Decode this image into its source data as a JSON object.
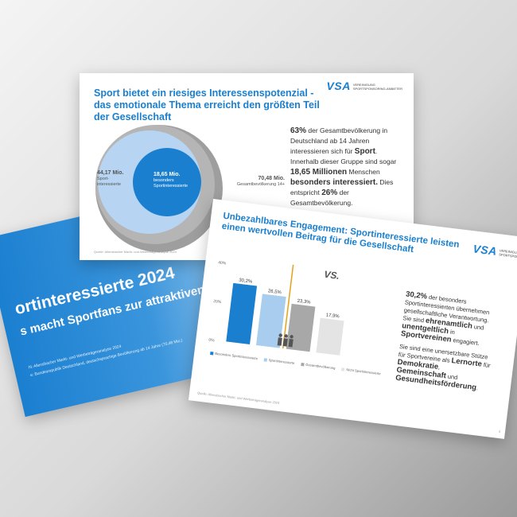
{
  "slide_title": {
    "title": "ortinteressierte 2024",
    "subtitle": "s macht Sportfans zur attraktiven Zielgruppe",
    "footnote1": "hl: Allensbacher Markt- und Werbeträgeranalyse 2024",
    "footnote2": "e: Bundesrepublik Deutschland, deutschsprachige Bevölkerung ab 14 Jahre (70,48 Mio.)"
  },
  "slide_potential": {
    "headline": "Sport bietet ein riesiges Interessenspotenzial - das emotionale Thema erreicht den größten Teil der Gesellschaft",
    "logo": {
      "mark": "VSA",
      "line1": "VEREINIGUNG",
      "line2": "SPORTSPONSORING-ANBIETER"
    },
    "outer": {
      "value": "70,48 Mio.",
      "label": "Gesamtbevölkerung 14+"
    },
    "middle": {
      "value": "44,17 Mio.",
      "label1": "Sport-",
      "label2": "interessierte"
    },
    "inner": {
      "value": "18,65 Mio.",
      "label1": "besonders",
      "label2": "Sportinteressierte"
    },
    "text": {
      "p1_bold": "63%",
      "p1": " der Gesamtbevölkerung in Deutschland ab 14 Jahren interessieren sich für ",
      "p1_bold2": "Sport",
      "p2": ". Innerhalb dieser Gruppe sind sogar ",
      "p2_bold": "18,65 Millionen",
      "p3": " Menschen ",
      "p3_bold": "besonders interessiert.",
      "p4": " Dies entspricht ",
      "p4_bold": "26%",
      "p5": " der Gesamtbevölkerung."
    },
    "source": "Quelle: Allensbacher Markt- und Werbeträgeranalyse 2024"
  },
  "slide_engagement": {
    "headline": "Unbezahlbares Engagement: Sportinteressierte leisten einen wertvollen Beitrag für die Gesellschaft",
    "logo": {
      "mark": "VSA",
      "line1": "VEREINIGUNG",
      "line2": "SPORTSPONSORING"
    },
    "vs": "VS.",
    "text": {
      "p1_bold": "30,2%",
      "p1": " der besonders Sportinteressierten übernehmen gesellschaftliche Verantwortung. Sie sind ",
      "b1": "ehrenamtlich",
      "p2": " und ",
      "b2": "unentgeltlich",
      "p3": " in ",
      "b3": "Sportvereinen",
      "p4": " engagiert.",
      "p5": "Sie sind eine unersetzbare Stütze für Sportvereine als ",
      "b4": "Lernorte",
      "p6": " für ",
      "b5": "Demokratie",
      "p7": ", ",
      "b6": "Gemeinschaft",
      "p8": " und ",
      "b7": "Gesundheitsförderung",
      "p9": "."
    },
    "source": "Quelle: Allensbacher Markt- und Werbeträgeranalyse 2024",
    "page": "3"
  },
  "chart_data": {
    "type": "bar",
    "categories": [
      "Besonders Sportinteressierte",
      "Sportinteressierte",
      "Gesamtbevölkerung",
      "Nicht Sportinteressierte"
    ],
    "values": [
      30.2,
      26.5,
      23.3,
      17.9
    ],
    "value_labels": [
      "30,2%",
      "26,5%",
      "23,3%",
      "17,9%"
    ],
    "colors": [
      "#1a7fcf",
      "#a9cdee",
      "#a8a8a8",
      "#e4e4e4"
    ],
    "ylim": [
      0,
      40
    ],
    "yticks": [
      "0%",
      "20%",
      "40%"
    ],
    "legend": "bottom",
    "grid": false
  }
}
